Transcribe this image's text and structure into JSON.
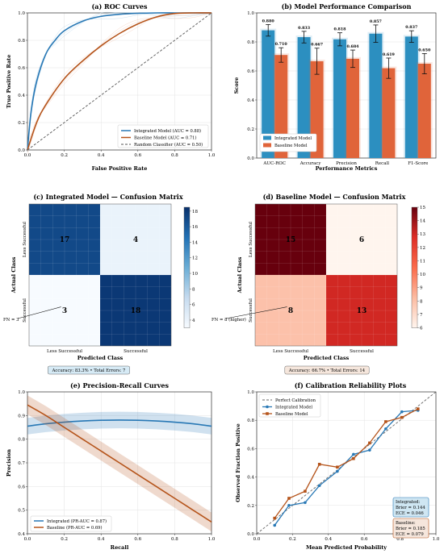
{
  "chart_data": [
    {
      "type": "line",
      "title": "(a) ROC Curves",
      "xlabel": "False Positive Rate",
      "ylabel": "True Positive Rate",
      "xlim": [
        0,
        1
      ],
      "ylim": [
        0,
        1
      ],
      "ticks": [
        "0.0",
        "0.2",
        "0.4",
        "0.6",
        "0.8",
        "1.0"
      ],
      "grid": true,
      "legend_position": "bottom-right",
      "series": [
        {
          "name": "Integrated Model (AUC = 0.88)",
          "color": "#2878b5",
          "x": [
            0,
            0.02,
            0.05,
            0.1,
            0.15,
            0.2,
            0.3,
            0.4,
            0.5,
            0.6,
            0.7,
            0.8,
            0.9,
            1.0
          ],
          "y": [
            0,
            0.28,
            0.5,
            0.7,
            0.8,
            0.87,
            0.94,
            0.975,
            0.99,
            0.997,
            1.0,
            1.0,
            1.0,
            1.0
          ]
        },
        {
          "name": "Baseline Model (AUC = 0.71)",
          "color": "#b5541b",
          "x": [
            0,
            0.05,
            0.1,
            0.2,
            0.3,
            0.4,
            0.5,
            0.6,
            0.7,
            0.8,
            0.9,
            1.0
          ],
          "y": [
            0,
            0.2,
            0.33,
            0.52,
            0.65,
            0.76,
            0.85,
            0.92,
            0.97,
            0.995,
            1.0,
            1.0
          ]
        },
        {
          "name": "Random Classifier (AUC = 0.50)",
          "color": "#555555",
          "dashed": true,
          "x": [
            0,
            1
          ],
          "y": [
            0,
            1
          ]
        }
      ]
    },
    {
      "type": "bar",
      "title": "(b) Model Performance Comparison",
      "xlabel": "Performance Metrics",
      "ylabel": "Score",
      "ylim": [
        0,
        1
      ],
      "ticks": [
        "0.0",
        "0.2",
        "0.4",
        "0.6",
        "0.8",
        "1.0"
      ],
      "categories": [
        "AUC-ROC",
        "Accuracy",
        "Precision",
        "Recall",
        "F1-Score"
      ],
      "legend_position": "bottom-left",
      "series": [
        {
          "name": "Integrated Model",
          "color": "#2c8fc0",
          "values": [
            0.88,
            0.833,
            0.818,
            0.857,
            0.837
          ],
          "labels": [
            "0.880",
            "0.833",
            "0.818",
            "0.857",
            "0.837"
          ],
          "errors": [
            0.04,
            0.04,
            0.045,
            0.06,
            0.04
          ]
        },
        {
          "name": "Baseline Model",
          "color": "#e0643a",
          "values": [
            0.71,
            0.667,
            0.684,
            0.619,
            0.65
          ],
          "labels": [
            "0.710",
            "0.667",
            "0.684",
            "0.619",
            "0.650"
          ],
          "errors": [
            0.05,
            0.09,
            0.06,
            0.07,
            0.07
          ]
        }
      ]
    },
    {
      "type": "heatmap",
      "title": "(c) Integrated Model — Confusion Matrix",
      "xlabel": "Predicted Class",
      "ylabel": "Actual Class",
      "rows": [
        "Less Successful",
        "Successful"
      ],
      "cols": [
        "Less Successful",
        "Successful"
      ],
      "values": [
        [
          17,
          4
        ],
        [
          3,
          18
        ]
      ],
      "colorbar_ticks": [
        "4",
        "6",
        "8",
        "10",
        "12",
        "14",
        "16",
        "18"
      ],
      "annotation": "FN = 3",
      "summary": "Accuracy: 83.3%  •  Total Errors: 7"
    },
    {
      "type": "heatmap",
      "title": "(d) Baseline Model — Confusion Matrix",
      "xlabel": "Predicted Class",
      "ylabel": "Actual Class",
      "rows": [
        "Less Successful",
        "Successful"
      ],
      "cols": [
        "Less Successful",
        "Successful"
      ],
      "values": [
        [
          15,
          6
        ],
        [
          8,
          13
        ]
      ],
      "colorbar_ticks": [
        "6",
        "7",
        "8",
        "9",
        "10",
        "11",
        "12",
        "13",
        "14",
        "15"
      ],
      "annotation": "FN = 8 (higher)",
      "summary": "Accuracy: 66.7%  •  Total Errors: 14"
    },
    {
      "type": "line",
      "title": "(e) Precision-Recall Curves",
      "xlabel": "Recall",
      "ylabel": "Precision",
      "xlim": [
        0,
        1
      ],
      "ylim": [
        0.4,
        1.0
      ],
      "xticks": [
        "0.0",
        "0.2",
        "0.4",
        "0.6",
        "0.8",
        "1.0"
      ],
      "yticks": [
        "0.4",
        "0.5",
        "0.6",
        "0.7",
        "0.8",
        "0.9",
        "1.0"
      ],
      "legend_position": "bottom-left",
      "series": [
        {
          "name": "Integrated (PR-AUC = 0.87)",
          "color": "#2878b5",
          "x": [
            0,
            0.1,
            0.2,
            0.3,
            0.4,
            0.5,
            0.6,
            0.7,
            0.8,
            0.9,
            1.0
          ],
          "y": [
            0.855,
            0.865,
            0.872,
            0.877,
            0.88,
            0.881,
            0.88,
            0.877,
            0.872,
            0.865,
            0.855
          ],
          "band": 0.035
        },
        {
          "name": "Baseline (PR-AUC = 0.69)",
          "color": "#b5541b",
          "x": [
            0,
            0.1,
            0.2,
            0.3,
            0.4,
            0.5,
            0.6,
            0.7,
            0.8,
            0.9,
            1.0
          ],
          "y": [
            0.945,
            0.9,
            0.85,
            0.8,
            0.75,
            0.7,
            0.65,
            0.6,
            0.55,
            0.5,
            0.45
          ],
          "band": 0.04
        }
      ]
    },
    {
      "type": "line",
      "title": "(f) Calibration Reliability Plots",
      "xlabel": "Mean Predicted Probability",
      "ylabel": "Observed Fraction Positive",
      "xlim": [
        0,
        1
      ],
      "ylim": [
        0,
        1
      ],
      "ticks": [
        "0.0",
        "0.2",
        "0.4",
        "0.6",
        "0.8",
        "1.0"
      ],
      "legend_position": "top-left",
      "series": [
        {
          "name": "Perfect Calibration",
          "color": "#666666",
          "dashed": true,
          "x": [
            0,
            1
          ],
          "y": [
            0,
            1
          ]
        },
        {
          "name": "Integrated Model",
          "color": "#2878b5",
          "marker": "circle",
          "x": [
            0.1,
            0.18,
            0.27,
            0.35,
            0.45,
            0.54,
            0.63,
            0.72,
            0.81,
            0.9
          ],
          "y": [
            0.06,
            0.2,
            0.22,
            0.34,
            0.44,
            0.56,
            0.59,
            0.74,
            0.86,
            0.87
          ]
        },
        {
          "name": "Baseline Model",
          "color": "#b5541b",
          "marker": "square",
          "x": [
            0.1,
            0.18,
            0.27,
            0.35,
            0.45,
            0.54,
            0.63,
            0.72,
            0.81,
            0.9
          ],
          "y": [
            0.11,
            0.25,
            0.3,
            0.49,
            0.47,
            0.53,
            0.64,
            0.79,
            0.82,
            0.88
          ]
        }
      ],
      "notes": [
        {
          "lines": [
            "Integrated:",
            "Brier = 0.144",
            "ECE = 0.046"
          ],
          "color": "#cfe6f2",
          "border": "#2878b5"
        },
        {
          "lines": [
            "Baseline:",
            "Brier = 0.185",
            "ECE = 0.079"
          ],
          "color": "#f5e6dc",
          "border": "#b5541b"
        }
      ]
    }
  ]
}
